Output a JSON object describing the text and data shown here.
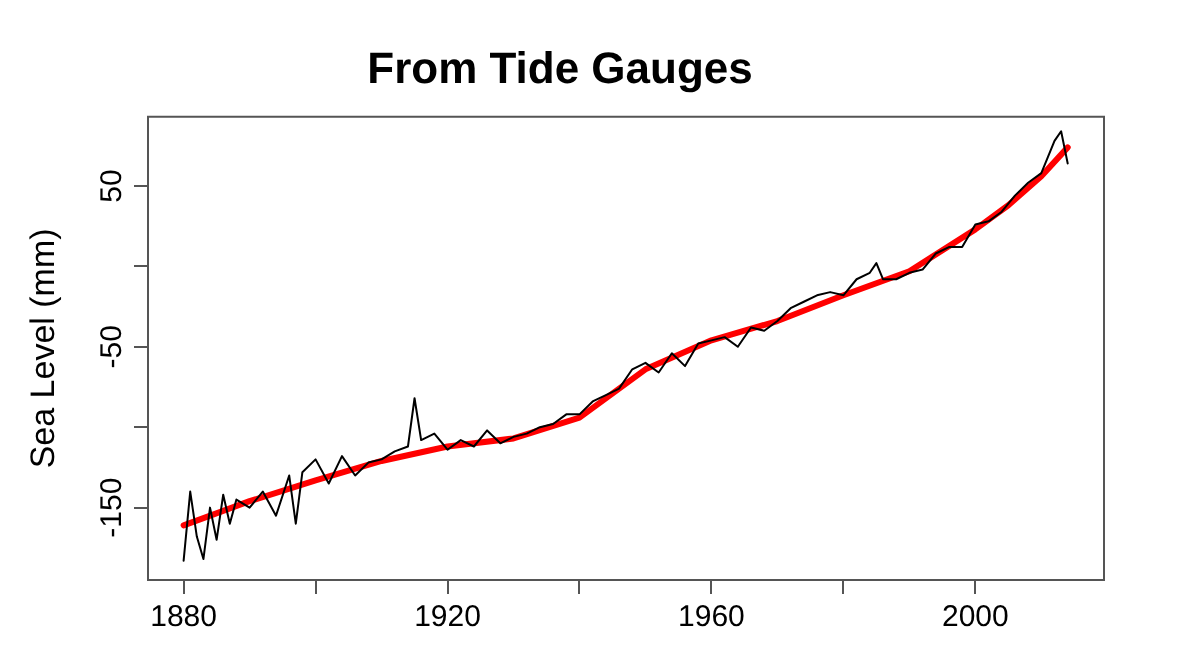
{
  "chart_data": {
    "type": "line",
    "title": "From Tide Gauges",
    "ylabel": "Sea Level (mm)",
    "xlim": [
      1874.6,
      2019.5
    ],
    "ylim": [
      -195,
      93
    ],
    "xticks": [
      1880,
      {
        "value": 1900,
        "label": null
      },
      1920,
      {
        "value": 1940,
        "label": null
      },
      1960,
      {
        "value": 1980,
        "label": null
      },
      2000
    ],
    "yticks": [
      -150,
      {
        "value": -100,
        "label": null
      },
      -50,
      {
        "value": 0,
        "label": null
      },
      50
    ],
    "grid": false,
    "legend": false,
    "marker": "none",
    "line_style": "solid",
    "series": [
      {
        "color": "#000000",
        "x": [
          1880,
          1881,
          1882,
          1883,
          1884,
          1885,
          1886,
          1887,
          1888,
          1890,
          1892,
          1894,
          1896,
          1897,
          1898,
          1900,
          1902,
          1904,
          1906,
          1908,
          1910,
          1912,
          1914,
          1915,
          1916,
          1918,
          1920,
          1922,
          1924,
          1926,
          1928,
          1930,
          1932,
          1934,
          1936,
          1938,
          1940,
          1942,
          1944,
          1946,
          1948,
          1950,
          1952,
          1954,
          1956,
          1958,
          1960,
          1962,
          1964,
          1966,
          1968,
          1970,
          1972,
          1974,
          1976,
          1978,
          1980,
          1982,
          1984,
          1985,
          1986,
          1988,
          1990,
          1992,
          1994,
          1996,
          1998,
          2000,
          2002,
          2004,
          2006,
          2008,
          2010,
          2012,
          2013,
          2014
        ],
        "values": [
          -183,
          -140,
          -168,
          -182,
          -150,
          -170,
          -142,
          -160,
          -145,
          -150,
          -140,
          -155,
          -130,
          -160,
          -128,
          -120,
          -135,
          -118,
          -130,
          -122,
          -120,
          -115,
          -112,
          -82,
          -108,
          -104,
          -114,
          -108,
          -112,
          -102,
          -110,
          -106,
          -104,
          -100,
          -98,
          -92,
          -92,
          -84,
          -80,
          -76,
          -64,
          -60,
          -66,
          -54,
          -62,
          -48,
          -46,
          -44,
          -50,
          -38,
          -40,
          -34,
          -26,
          -22,
          -18,
          -16,
          -18,
          -8,
          -4,
          2,
          -8,
          -8,
          -4,
          -2,
          8,
          12,
          12,
          26,
          28,
          34,
          44,
          52,
          58,
          78,
          84,
          64
        ]
      },
      {
        "color": "#ff0000",
        "x": [
          1880,
          1890,
          1900,
          1910,
          1920,
          1930,
          1940,
          1950,
          1960,
          1970,
          1980,
          1990,
          2000,
          2005,
          2010,
          2014
        ],
        "values": [
          -161,
          -146,
          -133,
          -121,
          -112,
          -107,
          -94,
          -64,
          -46,
          -34,
          -18,
          -3,
          23,
          38,
          56,
          74
        ]
      }
    ]
  }
}
